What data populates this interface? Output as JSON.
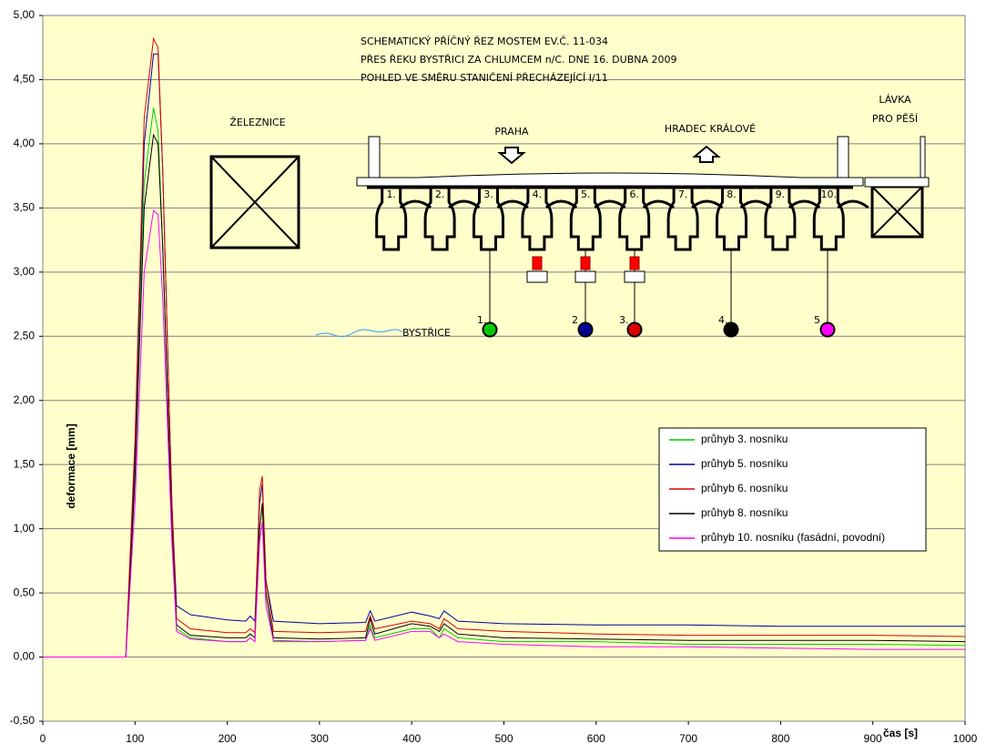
{
  "chart_data": {
    "type": "line",
    "x_label": "čas [s]",
    "y_label": "deformace [mm]",
    "x": [
      0,
      90,
      100,
      110,
      120,
      125,
      130,
      140,
      145,
      160,
      200,
      220,
      225,
      230,
      235,
      238,
      242,
      250,
      300,
      350,
      355,
      360,
      400,
      420,
      430,
      435,
      450,
      500,
      600,
      700,
      800,
      900,
      1000
    ],
    "series": [
      {
        "name": "průhyb 3. nosníku",
        "color": "#00cc00",
        "values": [
          0,
          0,
          1.5,
          3.7,
          4.28,
          4.1,
          3.2,
          1.0,
          0.22,
          0.15,
          0.12,
          0.12,
          0.15,
          0.12,
          1.0,
          1.18,
          0.5,
          0.12,
          0.12,
          0.13,
          0.25,
          0.15,
          0.22,
          0.22,
          0.15,
          0.22,
          0.15,
          0.12,
          0.12,
          0.1,
          0.1,
          0.1,
          0.09
        ]
      },
      {
        "name": "průhyb 5. nosníku",
        "color": "#000099",
        "values": [
          0,
          0,
          1.6,
          4.0,
          4.7,
          4.7,
          3.8,
          1.2,
          0.4,
          0.33,
          0.29,
          0.28,
          0.32,
          0.28,
          1.2,
          1.35,
          0.6,
          0.28,
          0.26,
          0.27,
          0.36,
          0.28,
          0.35,
          0.32,
          0.3,
          0.36,
          0.28,
          0.26,
          0.25,
          0.25,
          0.24,
          0.24,
          0.24
        ]
      },
      {
        "name": "průhyb 6. nosníku",
        "color": "#dd0000",
        "values": [
          0,
          0,
          1.7,
          4.2,
          4.82,
          4.75,
          3.8,
          1.2,
          0.3,
          0.22,
          0.19,
          0.19,
          0.22,
          0.19,
          1.3,
          1.41,
          0.6,
          0.2,
          0.19,
          0.2,
          0.32,
          0.22,
          0.28,
          0.26,
          0.22,
          0.3,
          0.22,
          0.2,
          0.18,
          0.17,
          0.17,
          0.17,
          0.16
        ]
      },
      {
        "name": "průhyb 8. nosníku",
        "color": "#000000",
        "values": [
          0,
          0,
          1.4,
          3.5,
          4.07,
          4.0,
          3.2,
          1.0,
          0.25,
          0.17,
          0.15,
          0.15,
          0.18,
          0.15,
          1.0,
          1.2,
          0.5,
          0.15,
          0.14,
          0.15,
          0.3,
          0.18,
          0.26,
          0.24,
          0.2,
          0.26,
          0.18,
          0.15,
          0.14,
          0.13,
          0.13,
          0.13,
          0.12
        ]
      },
      {
        "name": "průhyb 10. nosníku (fasádní, povodní)",
        "color": "#ff00ff",
        "values": [
          0,
          0,
          1.2,
          3.0,
          3.48,
          3.45,
          2.8,
          0.9,
          0.2,
          0.14,
          0.12,
          0.12,
          0.15,
          0.12,
          0.9,
          1.05,
          0.4,
          0.13,
          0.12,
          0.13,
          0.22,
          0.13,
          0.2,
          0.2,
          0.15,
          0.18,
          0.12,
          0.1,
          0.08,
          0.08,
          0.07,
          0.06,
          0.06
        ]
      }
    ],
    "xlim": [
      0,
      1000
    ],
    "xticks": [
      0,
      100,
      200,
      300,
      400,
      500,
      600,
      700,
      800,
      900,
      1000
    ],
    "ylim": [
      -0.5,
      5
    ],
    "yticks": [
      {
        "value": -0.5,
        "label": "-0,50"
      },
      {
        "value": 0,
        "label": "0,00"
      },
      {
        "value": 0.5,
        "label": "0,50"
      },
      {
        "value": 1,
        "label": "1,00"
      },
      {
        "value": 1.5,
        "label": "1,50"
      },
      {
        "value": 2,
        "label": "2,00"
      },
      {
        "value": 2.5,
        "label": "2,50"
      },
      {
        "value": 3,
        "label": "3,00"
      },
      {
        "value": 3.5,
        "label": "3,50"
      },
      {
        "value": 4,
        "label": "4,00"
      },
      {
        "value": 4.5,
        "label": "4,50"
      },
      {
        "value": 5,
        "label": "5,00"
      }
    ],
    "grid": true,
    "legend": "right",
    "annotations": {
      "title_lines": [
        "SCHEMATICKÝ PŘÍČNÝ ŘEZ MOSTEM EV.Č. 11-034",
        "PŘES ŘEKU BYSTŘICI ZA CHLUMCEM n/C. DNE 16. DUBNA 2009",
        "POHLED VE SMĚRU STANIČENÍ PŘECHÁZEJÍCÍ I/11"
      ],
      "railway": "ŽELEZNICE",
      "left_direction": "PRAHA",
      "right_direction": "HRADEC KRÁLOVÉ",
      "footbridge": [
        "LÁVKA",
        "PRO PĚŠÍ"
      ],
      "river": "BYSTŘICE",
      "girders": [
        "1.",
        "2.",
        "3.",
        "4.",
        "5.",
        "6.",
        "7.",
        "8.",
        "9.",
        "10."
      ],
      "sensors": [
        "1.",
        "2",
        "3.",
        "4.",
        "5"
      ]
    }
  }
}
